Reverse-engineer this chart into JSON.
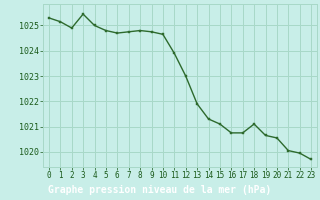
{
  "x": [
    0,
    1,
    2,
    3,
    4,
    5,
    6,
    7,
    8,
    9,
    10,
    11,
    12,
    13,
    14,
    15,
    16,
    17,
    18,
    19,
    20,
    21,
    22,
    23
  ],
  "y": [
    1025.3,
    1025.15,
    1024.9,
    1025.45,
    1025.0,
    1024.8,
    1024.7,
    1024.75,
    1024.8,
    1024.75,
    1024.65,
    1023.9,
    1023.0,
    1021.9,
    1021.3,
    1021.1,
    1020.75,
    1020.75,
    1021.1,
    1020.65,
    1020.55,
    1020.05,
    1019.95,
    1019.7
  ],
  "line_color": "#2d6a2d",
  "marker_color": "#2d6a2d",
  "bg_color": "#c8eee8",
  "grid_color": "#a8d8c8",
  "label_bg_color": "#4a8a4a",
  "xlabel": "Graphe pression niveau de la mer (hPa)",
  "xlabel_color": "#ffffff",
  "tick_color": "#1a5a1a",
  "xlabel_fontsize": 7.0,
  "tick_fontsize": 6.0,
  "ylim_min": 1019.4,
  "ylim_max": 1025.85,
  "ytick_values": [
    1020,
    1021,
    1022,
    1023,
    1024,
    1025
  ],
  "xtick_labels": [
    "0",
    "1",
    "2",
    "3",
    "4",
    "5",
    "6",
    "7",
    "8",
    "9",
    "10",
    "11",
    "12",
    "13",
    "14",
    "15",
    "16",
    "17",
    "18",
    "19",
    "20",
    "21",
    "22",
    "23"
  ]
}
